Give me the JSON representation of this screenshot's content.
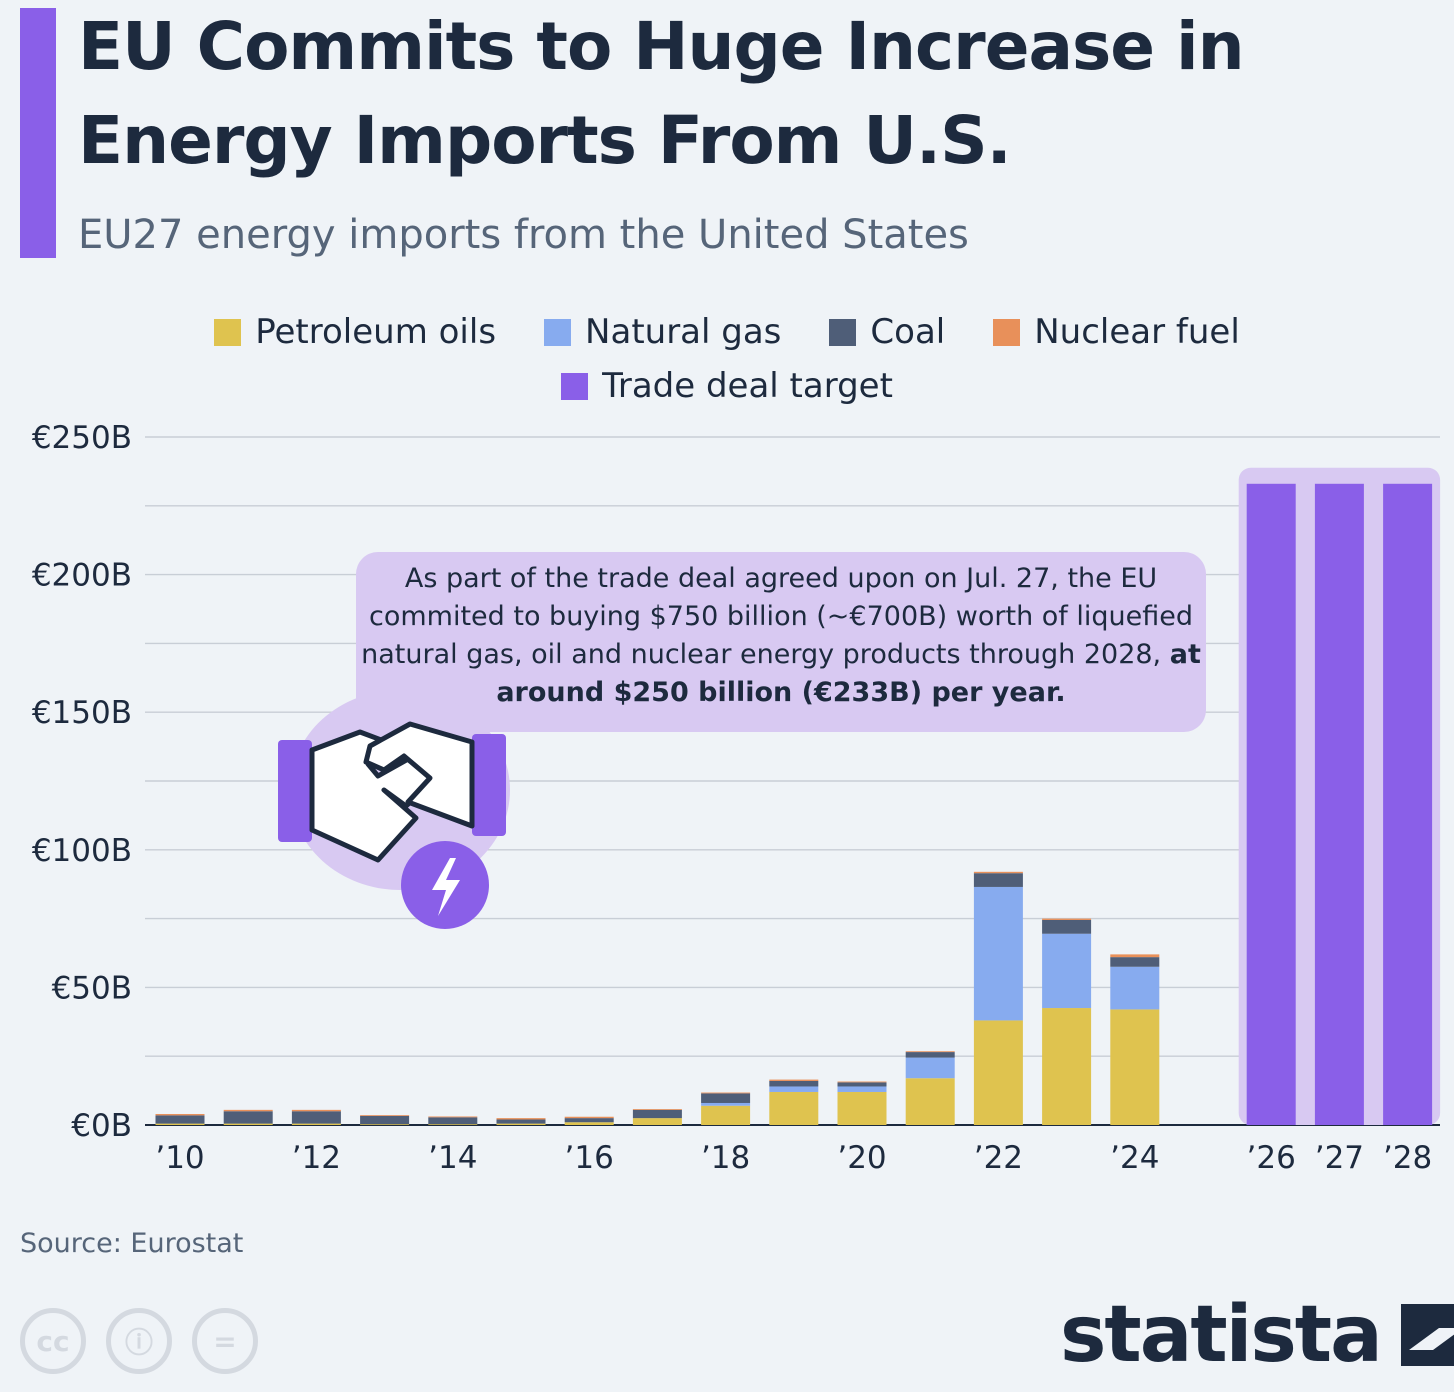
{
  "header": {
    "title": "EU Commits to Huge Increase in Energy Imports From U.S.",
    "subtitle": "EU27 energy imports from the United States"
  },
  "colors": {
    "petroleum": "#dfc34f",
    "gas": "#87abef",
    "coal": "#4f5e78",
    "nuclear": "#e8905a",
    "target": "#8a5fe8",
    "target_band": "#d8c9f2"
  },
  "legend": [
    {
      "label": "Petroleum oils",
      "color": "#dfc34f"
    },
    {
      "label": "Natural gas",
      "color": "#87abef"
    },
    {
      "label": "Coal",
      "color": "#4f5e78"
    },
    {
      "label": "Nuclear fuel",
      "color": "#e8905a"
    },
    {
      "label": "Trade deal target",
      "color": "#8a5fe8"
    }
  ],
  "callout": {
    "text": "As part of the trade deal agreed upon on Jul. 27, the EU commited to buying $750 billion (~€700B) worth of liquefied natural gas, oil and nuclear energy products through 2028,",
    "bold_text": "at around $250 billion (€233B) per year.",
    "icons": [
      "handshake-icon",
      "lightning-icon"
    ]
  },
  "chart_data": {
    "type": "bar",
    "stacked": true,
    "categories": [
      "2010",
      "2011",
      "2012",
      "2013",
      "2014",
      "2015",
      "2016",
      "2017",
      "2018",
      "2019",
      "2020",
      "2021",
      "2022",
      "2023",
      "2024",
      "2026",
      "2027",
      "2028"
    ],
    "x_tick_labels": [
      "’10",
      "",
      "’12",
      "",
      "’14",
      "",
      "’16",
      "",
      "’18",
      "",
      "’20",
      "",
      "’22",
      "",
      "’24",
      "’26",
      "’27",
      "’28"
    ],
    "series": [
      {
        "name": "Petroleum oils",
        "values": [
          0.5,
          0.5,
          0.5,
          0.3,
          0.3,
          0.5,
          1.0,
          2.5,
          7.0,
          12.0,
          12.0,
          17.0,
          38.0,
          42.5,
          42.0,
          0,
          0,
          0
        ]
      },
      {
        "name": "Natural gas",
        "values": [
          0,
          0,
          0,
          0,
          0,
          0,
          0,
          0,
          1.0,
          2.0,
          2.0,
          7.5,
          48.5,
          27.0,
          15.5,
          0,
          0,
          0
        ]
      },
      {
        "name": "Coal",
        "values": [
          3.0,
          4.5,
          4.5,
          3.0,
          2.5,
          1.5,
          1.5,
          3.0,
          3.5,
          2.0,
          1.5,
          2.0,
          5.0,
          5.0,
          3.5,
          0,
          0,
          0
        ]
      },
      {
        "name": "Nuclear fuel",
        "values": [
          0.5,
          0.5,
          0.5,
          0.3,
          0.3,
          0.5,
          0.5,
          0.3,
          0.3,
          0.5,
          0.3,
          0.3,
          0.5,
          0.5,
          1.0,
          0,
          0,
          0
        ]
      },
      {
        "name": "Trade deal target",
        "values": [
          0,
          0,
          0,
          0,
          0,
          0,
          0,
          0,
          0,
          0,
          0,
          0,
          0,
          0,
          0,
          233,
          233,
          233
        ]
      }
    ],
    "yticks": [
      0,
      25,
      50,
      75,
      100,
      125,
      150,
      175,
      200,
      225,
      250
    ],
    "ytick_labels": {
      "0": "€0B",
      "50": "€50B",
      "100": "€100B",
      "150": "€150B",
      "200": "€200B",
      "250": "€250B"
    },
    "ylim": [
      0,
      250
    ],
    "grid": true,
    "legend_position": "top-center"
  },
  "footer": {
    "source": "Source: Eurostat",
    "license_icons": [
      "cc",
      "ⓘ",
      "="
    ],
    "brand": "statista"
  }
}
